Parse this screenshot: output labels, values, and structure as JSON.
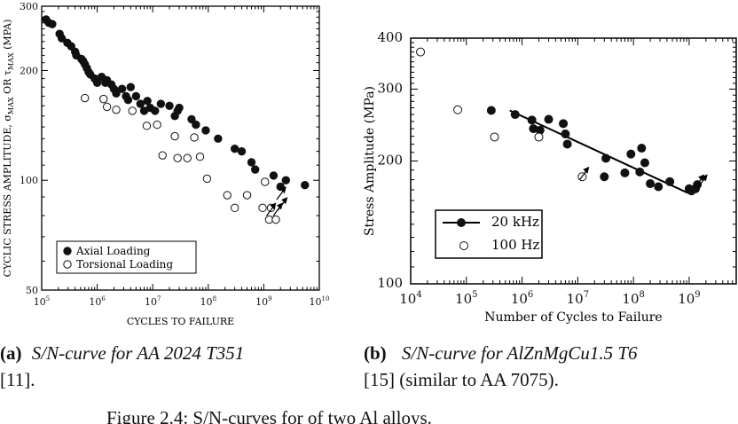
{
  "chart_data": [
    {
      "type": "scatter",
      "xlabel": "CYCLES TO FAILURE",
      "ylabel": "CYCLIC STRESS AMPLITUDE, σ_MAX OR τ_MAX (MPA)",
      "ylabel_parts": {
        "before": "CYCLIC STRESS AMPLITUDE, σ",
        "sub1": "MAX",
        "middle": " OR τ",
        "sub2": "MAX",
        "after": " (MPA)"
      },
      "x_scale": "log",
      "y_scale": "log",
      "xlim": [
        100000,
        10000000000
      ],
      "ylim": [
        50,
        300
      ],
      "x_ticks": [
        {
          "value": 100000,
          "base": "10",
          "exp": "5"
        },
        {
          "value": 1000000,
          "base": "10",
          "exp": "6"
        },
        {
          "value": 10000000,
          "base": "10",
          "exp": "7"
        },
        {
          "value": 100000000,
          "base": "10",
          "exp": "8"
        },
        {
          "value": 1000000000,
          "base": "10",
          "exp": "9"
        },
        {
          "value": 10000000000,
          "base": "10",
          "exp": "10"
        }
      ],
      "y_ticks": [
        {
          "value": 50,
          "label": "50"
        },
        {
          "value": 100,
          "label": "100"
        },
        {
          "value": 200,
          "label": "200"
        },
        {
          "value": 300,
          "label": "300"
        }
      ],
      "legend_position": "bottom-left",
      "series": [
        {
          "name": "Axial Loading",
          "marker": "filled-circle",
          "points": [
            [
              120000,
              276
            ],
            [
              135000,
              270
            ],
            [
              155000,
              268
            ],
            [
              210000,
              252
            ],
            [
              230000,
              245
            ],
            [
              290000,
              238
            ],
            [
              340000,
              233
            ],
            [
              400000,
              225
            ],
            [
              420000,
              220
            ],
            [
              520000,
              215
            ],
            [
              560000,
              212
            ],
            [
              600000,
              208
            ],
            [
              650000,
              203
            ],
            [
              700000,
              198
            ],
            [
              750000,
              195
            ],
            [
              900000,
              190
            ],
            [
              1000000,
              185
            ],
            [
              1200000,
              192
            ],
            [
              1400000,
              185
            ],
            [
              1500000,
              188
            ],
            [
              1800000,
              183
            ],
            [
              2000000,
              178
            ],
            [
              2200000,
              173
            ],
            [
              2800000,
              178
            ],
            [
              3300000,
              170
            ],
            [
              3600000,
              166
            ],
            [
              4000000,
              180
            ],
            [
              5000000,
              170
            ],
            [
              6000000,
              162
            ],
            [
              7000000,
              155
            ],
            [
              8000000,
              165
            ],
            [
              9000000,
              158
            ],
            [
              11000000,
              155
            ],
            [
              14000000,
              162
            ],
            [
              20000000,
              160
            ],
            [
              25000000,
              150
            ],
            [
              28000000,
              155
            ],
            [
              30000000,
              158
            ],
            [
              50000000,
              147
            ],
            [
              60000000,
              142
            ],
            [
              90000000,
              137
            ],
            [
              150000000,
              130
            ],
            [
              300000000,
              122
            ],
            [
              400000000,
              120
            ],
            [
              600000000,
              112
            ],
            [
              700000000,
              107
            ],
            [
              1500000000,
              103
            ],
            [
              2000000000,
              96
            ],
            [
              2500000000,
              100
            ],
            [
              5500000000,
              97
            ]
          ]
        },
        {
          "name": "Torsional Loading",
          "marker": "open-circle",
          "points": [
            [
              600000,
              168
            ],
            [
              1300000,
              167
            ],
            [
              1500000,
              159
            ],
            [
              2200000,
              156
            ],
            [
              4300000,
              155
            ],
            [
              7800000,
              141
            ],
            [
              12000000,
              142
            ],
            [
              15000000,
              117
            ],
            [
              25000000,
              132
            ],
            [
              28000000,
              115
            ],
            [
              42000000,
              115
            ],
            [
              56000000,
              131
            ],
            [
              71000000,
              116
            ],
            [
              95000000,
              101
            ],
            [
              220000000,
              91
            ],
            [
              300000000,
              84
            ],
            [
              500000000,
              91
            ],
            [
              950000000,
              84
            ],
            [
              1050000000,
              99
            ],
            [
              1250000000,
              78
            ],
            [
              1350000000,
              84
            ],
            [
              1650000000,
              78
            ]
          ]
        }
      ],
      "runouts": [
        {
          "series": "Torsional Loading",
          "x": 1250000000,
          "y": 84
        },
        {
          "series": "Torsional Loading",
          "x": 1650000000,
          "y": 84
        },
        {
          "series": "Torsional Loading",
          "x": 2000000000,
          "y": 87
        },
        {
          "series": "Axial Loading",
          "x": 1900000000,
          "y": 93
        }
      ]
    },
    {
      "type": "scatter",
      "xlabel": "Number of Cycles to Failure",
      "ylabel": "Stress Amplitude (MPa)",
      "x_scale": "log",
      "y_scale": "log",
      "xlim": [
        10000,
        7000000000
      ],
      "ylim": [
        100,
        400
      ],
      "x_ticks": [
        {
          "value": 10000,
          "base": "10",
          "exp": "4"
        },
        {
          "value": 100000,
          "base": "10",
          "exp": "5"
        },
        {
          "value": 1000000,
          "base": "10",
          "exp": "6"
        },
        {
          "value": 10000000,
          "base": "10",
          "exp": "7"
        },
        {
          "value": 100000000,
          "base": "10",
          "exp": "8"
        },
        {
          "value": 1000000000,
          "base": "10",
          "exp": "9"
        }
      ],
      "y_ticks": [
        {
          "value": 100,
          "label": "100"
        },
        {
          "value": 200,
          "label": "200"
        },
        {
          "value": 300,
          "label": "300"
        },
        {
          "value": 400,
          "label": "400"
        }
      ],
      "legend_position": "bottom-left",
      "series": [
        {
          "name": "20 kHz",
          "marker": "filled-circle",
          "points": [
            [
              280000,
              266
            ],
            [
              750000,
              260
            ],
            [
              1500000,
              252
            ],
            [
              1600000,
              240
            ],
            [
              2100000,
              238
            ],
            [
              3000000,
              253
            ],
            [
              5500000,
              247
            ],
            [
              6000000,
              233
            ],
            [
              6500000,
              220
            ],
            [
              32000000,
              203
            ],
            [
              30000000,
              183
            ],
            [
              70000000,
              187
            ],
            [
              90000000,
              208
            ],
            [
              130000000,
              188
            ],
            [
              140000000,
              215
            ],
            [
              160000000,
              198
            ],
            [
              200000000,
              176
            ],
            [
              280000000,
              173
            ],
            [
              450000000,
              178
            ],
            [
              1000000000,
              171
            ],
            [
              1100000000,
              169
            ],
            [
              1300000000,
              171
            ],
            [
              1400000000,
              175
            ]
          ]
        },
        {
          "name": "100 Hz",
          "marker": "open-circle",
          "points": [
            [
              15000,
              370
            ],
            [
              70000,
              267
            ],
            [
              320000,
              229
            ],
            [
              2000000,
              229
            ],
            [
              12000000,
              183
            ]
          ]
        }
      ],
      "fit_line": {
        "x": [
          600000,
          950000000
        ],
        "y": [
          266,
          167
        ]
      },
      "runouts": [
        {
          "series": "20 kHz",
          "x": 1400000000,
          "y": 180
        },
        {
          "series": "20 kHz",
          "x": 1600000000,
          "y": 180
        },
        {
          "series": "100 Hz",
          "x": 12000000,
          "y": 188
        }
      ]
    }
  ],
  "captions": {
    "a": {
      "tag": "(a)",
      "text": "S/N-curve for AA 2024 T351",
      "ref": "[11]."
    },
    "b": {
      "tag": "(b)",
      "text": "S/N-curve for AlZnMgCu1.5 T6",
      "ref": "[15] (similar to AA 7075)."
    },
    "figure": "Figure 2.4: S/N-curves for of two Al alloys."
  }
}
